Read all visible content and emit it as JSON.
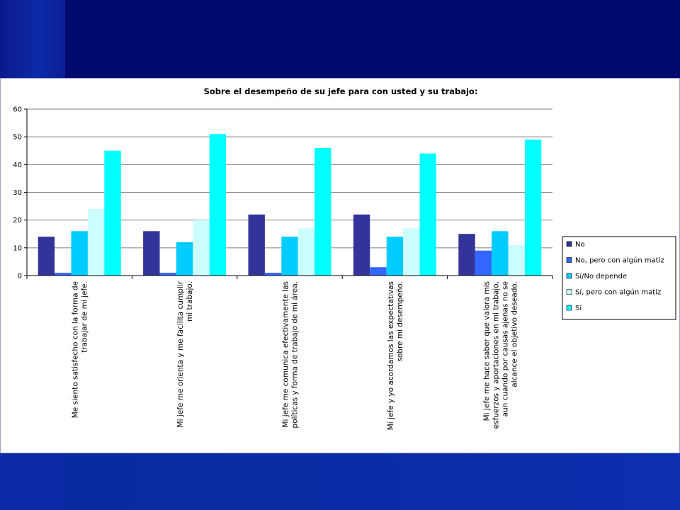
{
  "chart_data": {
    "type": "bar",
    "title": "Sobre el desempeño de su jefe para con usted y su trabajo:",
    "xlabel": "",
    "ylabel": "",
    "ylim": [
      0,
      60
    ],
    "yticks": [
      0,
      10,
      20,
      30,
      40,
      50,
      60
    ],
    "grid": true,
    "legend_position": "right",
    "categories": [
      [
        "Me siento satisfecho con la forma de",
        "trabajar de mi jefe."
      ],
      [
        "Mi jefe me orienta y me facilita cumplir",
        "mi trabajo."
      ],
      [
        "Mi jefe me comunica efectivamente las",
        "políticas y forma de trabajo de mi área."
      ],
      [
        "Mi jefe y yo acordamos las expectativas",
        "sobre mi desempeño."
      ],
      [
        "Mi jefe me hace saber que valora mis",
        "esfuerzos y aportaciones en mi trabajo,",
        "aun cuando por causas ajenas no se",
        "alcance el objetivo deseado."
      ]
    ],
    "series": [
      {
        "name": "No",
        "color": "#333399",
        "values": [
          14,
          16,
          22,
          22,
          15
        ]
      },
      {
        "name": "No, pero con algún matiz",
        "color": "#3366ff",
        "values": [
          1,
          1,
          1,
          3,
          9
        ]
      },
      {
        "name": "Sí/No depende",
        "color": "#00ccff",
        "values": [
          16,
          12,
          14,
          14,
          16
        ]
      },
      {
        "name": "Sí, pero con algún matiz",
        "color": "#ccffff",
        "values": [
          24,
          20,
          17,
          17,
          11
        ]
      },
      {
        "name": "Sí",
        "color": "#00ffff",
        "values": [
          45,
          51,
          46,
          44,
          49
        ]
      }
    ]
  }
}
